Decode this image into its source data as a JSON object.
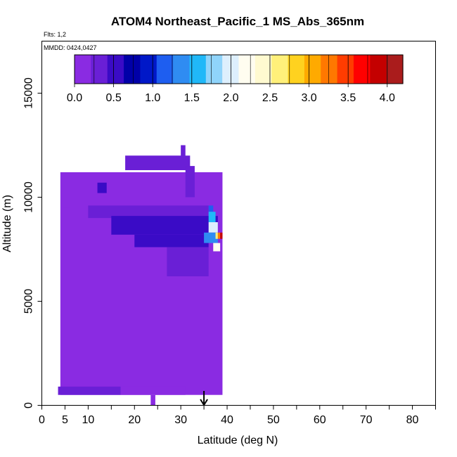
{
  "chart_data": {
    "type": "heatmap",
    "title": "ATOM4 Northeast_Pacific_1 MS_Abs_365nm",
    "flights_label": "Flts: 1,2",
    "dates_label": "MMDD: 0424,0427",
    "xlabel": "Latitude (deg N)",
    "ylabel": "Altitude (m)",
    "xlim": [
      0,
      85
    ],
    "ylim": [
      0,
      17500
    ],
    "x_tick_labels": [
      "0",
      "5",
      "10",
      "20",
      "30",
      "40",
      "50",
      "60",
      "70",
      "80"
    ],
    "y_tick_labels": [
      "0",
      "5000",
      "10000",
      "15000"
    ],
    "colorbar": {
      "min": 0.0,
      "max": 4.2,
      "tick_labels": [
        "0.0",
        "0.5",
        "1.0",
        "1.5",
        "2.0",
        "2.5",
        "3.0",
        "3.5",
        "4.0"
      ],
      "colors": [
        "#8a2be2",
        "#6a1fd6",
        "#3a0bc6",
        "#0000a8",
        "#0018c8",
        "#1e5ef0",
        "#2f8cf2",
        "#20b8f8",
        "#8fd4fb",
        "#ddeffd",
        "#fffdf0",
        "#fffad0",
        "#fff07a",
        "#ffd21f",
        "#ffaa00",
        "#ff7800",
        "#ff3c00",
        "#ff0000",
        "#c40000",
        "#aa1c1c"
      ]
    },
    "marker": {
      "latitude": 35,
      "symbol": "arrow-down"
    },
    "cells": [
      {
        "lat0": 4,
        "lat1": 39,
        "alt0": 500,
        "alt1": 11200,
        "value": 0.15
      },
      {
        "lat0": 4.5,
        "lat1": 6,
        "alt0": 1000,
        "alt1": 9500,
        "value": 0.2
      },
      {
        "lat0": 18,
        "lat1": 32,
        "alt0": 11300,
        "alt1": 12000,
        "value": 0.25
      },
      {
        "lat0": 30,
        "lat1": 31,
        "alt0": 11800,
        "alt1": 12500,
        "value": 0.3
      },
      {
        "lat0": 12,
        "lat1": 14,
        "alt0": 10200,
        "alt1": 10700,
        "value": 0.45
      },
      {
        "lat0": 10,
        "lat1": 36,
        "alt0": 9000,
        "alt1": 9600,
        "value": 0.3
      },
      {
        "lat0": 15,
        "lat1": 38,
        "alt0": 8200,
        "alt1": 9100,
        "value": 0.45
      },
      {
        "lat0": 20,
        "lat1": 36,
        "alt0": 7600,
        "alt1": 8200,
        "value": 0.5
      },
      {
        "lat0": 27,
        "lat1": 36,
        "alt0": 6200,
        "alt1": 7600,
        "value": 0.35
      },
      {
        "lat0": 31,
        "lat1": 33,
        "alt0": 10000,
        "alt1": 11500,
        "value": 0.4
      },
      {
        "lat0": 3.5,
        "lat1": 17,
        "alt0": 500,
        "alt1": 900,
        "value": 0.4
      },
      {
        "lat0": 17,
        "lat1": 31,
        "alt0": 500,
        "alt1": 900,
        "value": 0.2
      },
      {
        "lat0": 23.5,
        "lat1": 24.5,
        "alt0": 0,
        "alt1": 500,
        "value": 0.2
      },
      {
        "lat0": 36,
        "lat1": 37,
        "alt0": 9300,
        "alt1": 9600,
        "value": 1.2
      },
      {
        "lat0": 36,
        "lat1": 37.5,
        "alt0": 8800,
        "alt1": 9300,
        "value": 1.6
      },
      {
        "lat0": 36,
        "lat1": 38,
        "alt0": 8300,
        "alt1": 8800,
        "value": 1.9
      },
      {
        "lat0": 35,
        "lat1": 38,
        "alt0": 7800,
        "alt1": 8300,
        "value": 1.4
      },
      {
        "lat0": 37,
        "lat1": 38.5,
        "alt0": 7400,
        "alt1": 7800,
        "value": 2.2
      },
      {
        "lat0": 37.5,
        "lat1": 38,
        "alt0": 8000,
        "alt1": 8300,
        "value": 2.6
      },
      {
        "lat0": 38,
        "lat1": 38.5,
        "alt0": 8000,
        "alt1": 8300,
        "value": 3.2
      },
      {
        "lat0": 38.5,
        "lat1": 39,
        "alt0": 8000,
        "alt1": 8300,
        "value": 3.9
      }
    ]
  }
}
